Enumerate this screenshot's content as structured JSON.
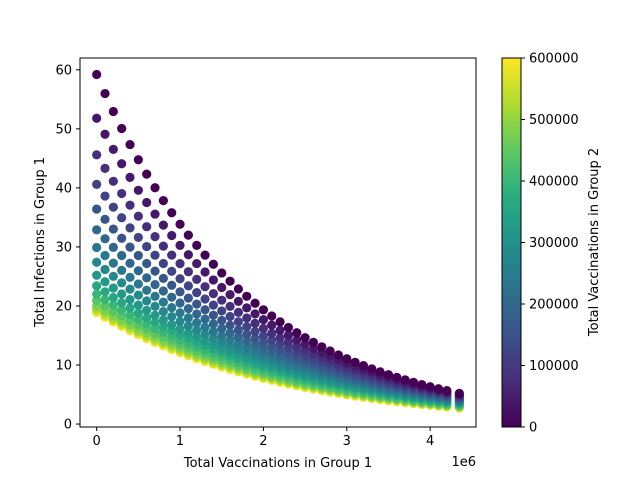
{
  "chart_data": {
    "type": "scatter",
    "title": "",
    "xlabel": "Total Vaccinations in Group 1",
    "ylabel": "Total Infections in Group 1",
    "x_offset_label": "1e6",
    "xlim": [
      -0.2,
      4.55
    ],
    "ylim": [
      -0.5,
      62
    ],
    "x_ticks": [
      0,
      1,
      2,
      3,
      4
    ],
    "y_ticks": [
      0,
      10,
      20,
      30,
      40,
      50,
      60
    ],
    "x_tick_labels": [
      "0",
      "1",
      "2",
      "3",
      "4"
    ],
    "y_tick_labels": [
      "0",
      "10",
      "20",
      "30",
      "40",
      "50",
      "60"
    ],
    "grid": false,
    "colormap": "viridis",
    "color_range": [
      0,
      600000
    ],
    "colorbar": {
      "label": "Total Vaccinations in Group 2",
      "ticks": [
        0,
        100000,
        200000,
        300000,
        400000,
        500000,
        600000
      ],
      "tick_labels": [
        "0",
        "100000",
        "200000",
        "300000",
        "400000",
        "500000",
        "600000"
      ]
    },
    "x_grid": [
      0,
      0.1,
      0.2,
      0.3,
      0.4,
      0.5,
      0.6,
      0.7,
      0.8,
      0.9,
      1.0,
      1.1,
      1.2,
      1.3,
      1.4,
      1.5,
      1.6,
      1.7,
      1.8,
      1.9,
      2.0,
      2.1,
      2.2,
      2.3,
      2.4,
      2.5,
      2.6,
      2.7,
      2.8,
      2.9,
      3.0,
      3.1,
      3.2,
      3.3,
      3.4,
      3.5,
      3.6,
      3.7,
      3.8,
      3.9,
      4.0,
      4.1,
      4.2,
      4.35
    ],
    "series": [
      {
        "group2_vaccinations": 0,
        "y_start": 59.2,
        "y_end": 5.2
      },
      {
        "group2_vaccinations": 40000,
        "y_start": 51.8,
        "y_end": 5.0
      },
      {
        "group2_vaccinations": 80000,
        "y_start": 45.6,
        "y_end": 4.8
      },
      {
        "group2_vaccinations": 120000,
        "y_start": 40.6,
        "y_end": 4.6
      },
      {
        "group2_vaccinations": 160000,
        "y_start": 36.4,
        "y_end": 4.4
      },
      {
        "group2_vaccinations": 200000,
        "y_start": 32.9,
        "y_end": 4.2
      },
      {
        "group2_vaccinations": 240000,
        "y_start": 29.9,
        "y_end": 4.0
      },
      {
        "group2_vaccinations": 280000,
        "y_start": 27.4,
        "y_end": 3.8
      },
      {
        "group2_vaccinations": 320000,
        "y_start": 25.2,
        "y_end": 3.6
      },
      {
        "group2_vaccinations": 360000,
        "y_start": 23.4,
        "y_end": 3.5
      },
      {
        "group2_vaccinations": 400000,
        "y_start": 22.0,
        "y_end": 3.3
      },
      {
        "group2_vaccinations": 440000,
        "y_start": 20.9,
        "y_end": 3.1
      },
      {
        "group2_vaccinations": 480000,
        "y_start": 20.0,
        "y_end": 3.0
      },
      {
        "group2_vaccinations": 520000,
        "y_start": 19.5,
        "y_end": 2.9
      },
      {
        "group2_vaccinations": 560000,
        "y_start": 19.2,
        "y_end": 2.8
      },
      {
        "group2_vaccinations": 600000,
        "y_start": 18.9,
        "y_end": 2.7
      }
    ]
  }
}
